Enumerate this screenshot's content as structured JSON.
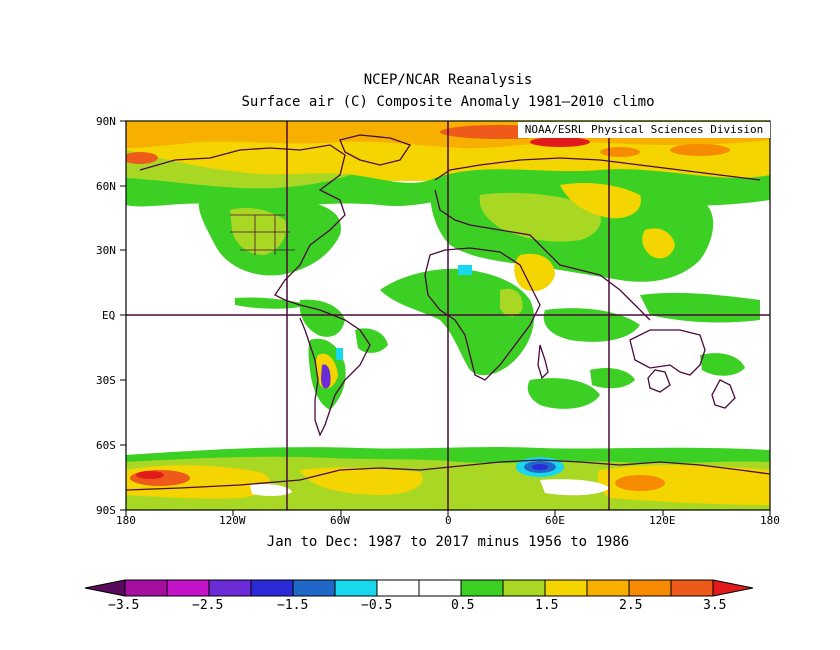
{
  "titles": {
    "line1": "NCEP/NCAR Reanalysis",
    "line2": "Surface air (C) Composite Anomaly 1981–2010 climo",
    "subtitle": "Jan to Dec: 1987 to 2017 minus 1956 to 1986",
    "credit": "NOAA/ESRL Physical Sciences Division"
  },
  "axes": {
    "lat_labels": [
      "90N",
      "60N",
      "30N",
      "EQ",
      "30S",
      "60S",
      "90S"
    ],
    "lon_labels": [
      "180",
      "120W",
      "60W",
      "0",
      "60E",
      "120E",
      "180"
    ]
  },
  "colorbar": {
    "labels": [
      "−3.5",
      "−2.5",
      "−1.5",
      "−0.5",
      "0.5",
      "1.5",
      "2.5",
      "3.5"
    ],
    "colors": [
      "#5a0a5a",
      "#a40fa0",
      "#c414c8",
      "#6b2bd7",
      "#2a2ad7",
      "#1f68c8",
      "#19d7ec",
      "#ffffff",
      "#ffffff",
      "#3cd024",
      "#a9d824",
      "#f4d500",
      "#f8b000",
      "#f68a00",
      "#ee5a1a",
      "#e11b1b"
    ]
  }
}
